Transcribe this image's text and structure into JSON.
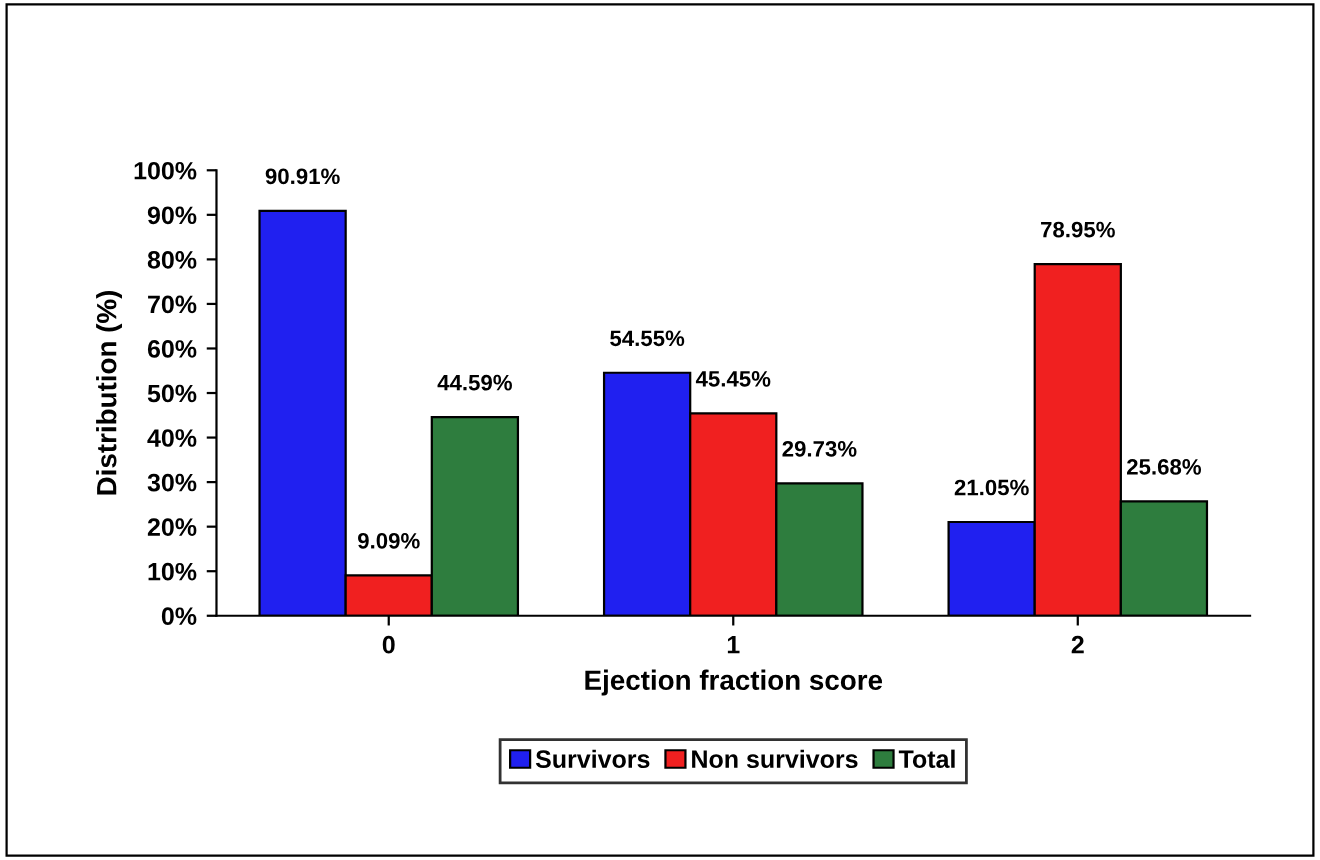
{
  "chart_data": {
    "type": "bar",
    "xlabel": "Ejection fraction score",
    "ylabel": "Distribution (%)",
    "categories": [
      "0",
      "1",
      "2"
    ],
    "series": [
      {
        "name": "Survivors",
        "color": "#2020f0",
        "values": [
          90.91,
          54.55,
          21.05
        ],
        "value_labels": [
          "90.91%",
          "54.55%",
          "21.05%"
        ]
      },
      {
        "name": "Non survivors",
        "color": "#f02020",
        "values": [
          9.09,
          45.45,
          78.95
        ],
        "value_labels": [
          "9.09%",
          "45.45%",
          "78.95%"
        ]
      },
      {
        "name": "Total",
        "color": "#2e7d3e",
        "values": [
          44.59,
          29.73,
          25.68
        ],
        "value_labels": [
          "44.59%",
          "29.73%",
          "25.68%"
        ]
      }
    ],
    "ylim": [
      0,
      100
    ],
    "yticks": [
      {
        "value": 0,
        "label": "0%"
      },
      {
        "value": 10,
        "label": "10%"
      },
      {
        "value": 20,
        "label": "20%"
      },
      {
        "value": 30,
        "label": "30%"
      },
      {
        "value": 40,
        "label": "40%"
      },
      {
        "value": 50,
        "label": "50%"
      },
      {
        "value": 60,
        "label": "60%"
      },
      {
        "value": 70,
        "label": "70%"
      },
      {
        "value": 80,
        "label": "80%"
      },
      {
        "value": 90,
        "label": "90%"
      },
      {
        "value": 100,
        "label": "100%"
      }
    ],
    "grid": false,
    "legend": "bottom"
  }
}
